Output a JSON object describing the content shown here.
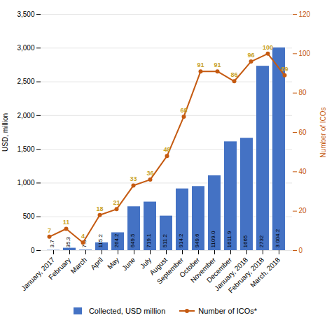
{
  "chart_data": {
    "type": "bar",
    "categories": [
      "January, 2017",
      "February",
      "March",
      "April",
      "May",
      "June",
      "July",
      "August",
      "September",
      "October",
      "November",
      "December",
      "January, 2018",
      "February, 2018",
      "March, 2018"
    ],
    "ylabel": "USD, million",
    "y2label": "Number of ICOs",
    "ylim": [
      0,
      3500
    ],
    "yticks": [
      0,
      500,
      1000,
      1500,
      2000,
      2500,
      3000,
      3500
    ],
    "y2lim": [
      0,
      120
    ],
    "y2ticks": [
      0,
      20,
      40,
      60,
      80,
      100,
      120
    ],
    "grid": true,
    "legend": "bottom",
    "data_labels": true,
    "series": [
      {
        "name": "Collected, USD million",
        "type": "bar",
        "color": "#4472C4",
        "values": [
          3.7,
          35.3,
          7.3,
          115.2,
          264.2,
          649.5,
          719.1,
          511.2,
          914.2,
          949.6,
          1109.0,
          1611.9,
          1665,
          2732,
          3004.2
        ],
        "value_labels": [
          "3.7",
          "35.3",
          "7.3",
          "115.2",
          "264.2",
          "649.5",
          "719.1",
          "511.2",
          "914.2",
          "949.6",
          "1109.0",
          "1611.9",
          "1665",
          "2732",
          "3 004.2"
        ]
      },
      {
        "name": "Number of ICOs*",
        "type": "line",
        "axis": "y2",
        "color": "#C55A11",
        "marker": "circle",
        "values": [
          7,
          11,
          4,
          18,
          21,
          33,
          36,
          48,
          68,
          91,
          91,
          86,
          96,
          100,
          89
        ]
      }
    ]
  }
}
